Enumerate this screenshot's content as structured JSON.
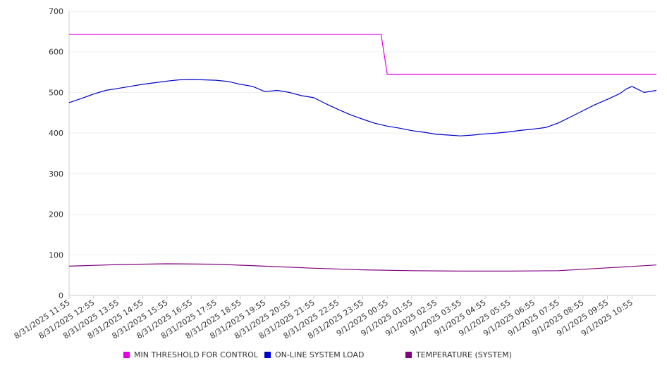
{
  "chart_data": {
    "type": "line",
    "x": [
      "8/31/2025 11:55",
      "8/31/2025 12:55",
      "8/31/2025 13:55",
      "8/31/2025 14:55",
      "8/31/2025 15:55",
      "8/31/2025 16:55",
      "8/31/2025 17:55",
      "8/31/2025 18:55",
      "8/31/2025 19:55",
      "8/31/2025 20:55",
      "8/31/2025 21:55",
      "8/31/2025 22:55",
      "8/31/2025 23:55",
      "9/1/2025 00:55",
      "9/1/2025 01:55",
      "9/1/2025 02:55",
      "9/1/2025 03:55",
      "9/1/2025 04:55",
      "9/1/2025 05:55",
      "9/1/2025 06:55",
      "9/1/2025 07:55",
      "9/1/2025 08:55",
      "9/1/2025 09:55",
      "9/1/2025 10:55"
    ],
    "x_end": "9/1/2025 11:55",
    "ylim": [
      0,
      700
    ],
    "yticks": [
      0,
      100,
      200,
      300,
      400,
      500,
      600,
      700
    ],
    "grid": true,
    "legend_position": "bottom",
    "series": [
      {
        "name": "MIN THRESHOLD FOR CONTROL",
        "color": "#e600e6",
        "x": [
          "8/31/2025 11:55",
          "9/1/2025 00:40",
          "9/1/2025 00:55",
          "9/1/2025 11:55"
        ],
        "values": [
          643,
          643,
          545,
          545
        ]
      },
      {
        "name": "ON-LINE SYSTEM LOAD",
        "color": "#0000cc",
        "x": [
          "8/31/2025 11:55",
          "8/31/2025 12:25",
          "8/31/2025 12:55",
          "8/31/2025 13:25",
          "8/31/2025 13:55",
          "8/31/2025 14:25",
          "8/31/2025 14:55",
          "8/31/2025 15:25",
          "8/31/2025 15:55",
          "8/31/2025 16:25",
          "8/31/2025 16:55",
          "8/31/2025 17:25",
          "8/31/2025 17:55",
          "8/31/2025 18:25",
          "8/31/2025 18:55",
          "8/31/2025 19:25",
          "8/31/2025 19:55",
          "8/31/2025 20:25",
          "8/31/2025 20:55",
          "8/31/2025 21:25",
          "8/31/2025 21:55",
          "8/31/2025 22:25",
          "8/31/2025 22:55",
          "8/31/2025 23:25",
          "8/31/2025 23:55",
          "9/1/2025 00:25",
          "9/1/2025 00:55",
          "9/1/2025 01:25",
          "9/1/2025 01:55",
          "9/1/2025 02:25",
          "9/1/2025 02:55",
          "9/1/2025 03:25",
          "9/1/2025 03:55",
          "9/1/2025 04:25",
          "9/1/2025 04:55",
          "9/1/2025 05:25",
          "9/1/2025 05:55",
          "9/1/2025 06:25",
          "9/1/2025 06:55",
          "9/1/2025 07:25",
          "9/1/2025 07:55",
          "9/1/2025 08:25",
          "9/1/2025 08:55",
          "9/1/2025 09:25",
          "9/1/2025 09:55",
          "9/1/2025 10:25",
          "9/1/2025 10:40",
          "9/1/2025 10:55",
          "9/1/2025 11:25",
          "9/1/2025 11:55"
        ],
        "values": [
          475,
          485,
          496,
          505,
          510,
          515,
          520,
          524,
          528,
          531,
          532,
          531,
          530,
          527,
          520,
          515,
          502,
          505,
          500,
          492,
          487,
          472,
          458,
          445,
          434,
          424,
          417,
          412,
          406,
          402,
          397,
          395,
          393,
          395,
          398,
          400,
          403,
          407,
          410,
          414,
          425,
          440,
          455,
          470,
          483,
          497,
          508,
          515,
          500,
          505
        ]
      },
      {
        "name": "TEMPERATURE (SYSTEM)",
        "color": "#800080",
        "x": [
          "8/31/2025 11:55",
          "8/31/2025 13:55",
          "8/31/2025 15:55",
          "8/31/2025 17:55",
          "8/31/2025 19:55",
          "8/31/2025 21:55",
          "8/31/2025 23:55",
          "9/1/2025 01:55",
          "9/1/2025 03:55",
          "9/1/2025 05:55",
          "9/1/2025 07:55",
          "9/1/2025 09:55",
          "9/1/2025 11:55"
        ],
        "values": [
          72,
          76,
          78,
          77,
          72,
          67,
          63,
          61,
          60,
          60,
          61,
          68,
          75
        ]
      }
    ]
  }
}
